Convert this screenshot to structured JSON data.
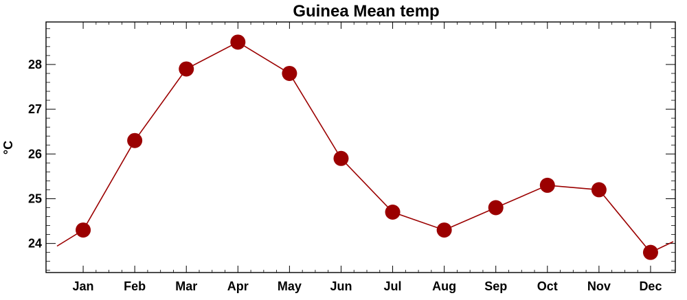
{
  "chart_data": {
    "type": "line",
    "title": "Guinea Mean temp",
    "xlabel": "",
    "ylabel": "°C",
    "categories": [
      "Jan",
      "Feb",
      "Mar",
      "Apr",
      "May",
      "Jun",
      "Jul",
      "Aug",
      "Sep",
      "Oct",
      "Nov",
      "Dec"
    ],
    "series": [
      {
        "values": [
          24.3,
          26.3,
          27.9,
          28.5,
          27.8,
          25.9,
          24.7,
          24.3,
          24.8,
          25.3,
          25.2,
          23.8
        ]
      }
    ],
    "yticks": [
      24,
      25,
      26,
      27,
      28
    ],
    "ylim": [
      23.35,
      28.95
    ],
    "grid": false,
    "legend": "none",
    "colors": {
      "series": "#9b0000",
      "axis": "#000000",
      "background": "#ffffff"
    }
  }
}
